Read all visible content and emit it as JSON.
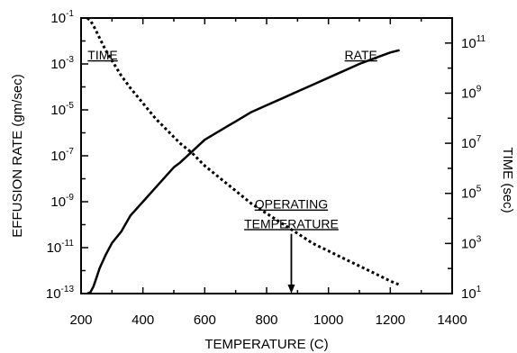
{
  "chart_data": {
    "type": "line",
    "title": "",
    "xlabel": "TEMPERATURE (C)",
    "ylabel_left": "EFFUSION RATE (gm/sec)",
    "ylabel_right": "TIME (sec)",
    "xlim": [
      200,
      1400
    ],
    "xticks": [
      200,
      400,
      600,
      800,
      1000,
      1200,
      1400
    ],
    "ylim_left_log10": [
      -13,
      -1
    ],
    "yticks_left_exponents": [
      -13,
      -11,
      -9,
      -7,
      -5,
      -3,
      -1
    ],
    "ylim_right_log10": [
      1,
      12
    ],
    "yticks_right_exponents": [
      1,
      3,
      5,
      7,
      9,
      11
    ],
    "log_base": "10",
    "grid": false,
    "series": [
      {
        "name": "RATE",
        "axis": "left",
        "style": "solid",
        "x": [
          220,
          230,
          240,
          250,
          260,
          280,
          300,
          330,
          360,
          400,
          440,
          480,
          500,
          520,
          560,
          600,
          650,
          700,
          750,
          800,
          850,
          900,
          950,
          1000,
          1050,
          1100,
          1150,
          1200,
          1230
        ],
        "log10_y": [
          -13.0,
          -12.95,
          -12.7,
          -12.3,
          -11.9,
          -11.3,
          -10.8,
          -10.3,
          -9.6,
          -9.0,
          -8.4,
          -7.8,
          -7.5,
          -7.3,
          -6.8,
          -6.3,
          -5.9,
          -5.5,
          -5.1,
          -4.8,
          -4.5,
          -4.2,
          -3.9,
          -3.6,
          -3.3,
          -3.0,
          -2.75,
          -2.5,
          -2.4
        ]
      },
      {
        "name": "TIME",
        "axis": "right",
        "style": "dotted",
        "x": [
          220,
          230,
          240,
          260,
          280,
          300,
          330,
          360,
          400,
          440,
          480,
          520,
          560,
          600,
          650,
          700,
          750,
          800,
          850,
          900,
          950,
          1000,
          1050,
          1100,
          1150,
          1200,
          1230
        ],
        "log10_y": [
          12.0,
          11.9,
          11.7,
          11.2,
          10.7,
          10.3,
          9.7,
          9.2,
          8.6,
          8.0,
          7.5,
          7.0,
          6.6,
          6.1,
          5.6,
          5.1,
          4.6,
          4.2,
          3.8,
          3.4,
          3.0,
          2.7,
          2.4,
          2.1,
          1.8,
          1.5,
          1.35
        ]
      }
    ],
    "annotations": [
      {
        "text": "TIME",
        "x": 270,
        "log10_y_left": -2.8
      },
      {
        "text": "RATE",
        "x": 1105,
        "log10_y_left": -2.8
      },
      {
        "text": "OPERATING",
        "x": 880,
        "log10_y_left": -9.3
      },
      {
        "text": "TEMPERATURE",
        "x": 880,
        "log10_y_left": -10.15
      },
      {
        "text": "arrow",
        "x": 880,
        "from_log10_y_left": -10.4,
        "to_log10_y_left": -13.0
      }
    ]
  },
  "tick_base": "10"
}
